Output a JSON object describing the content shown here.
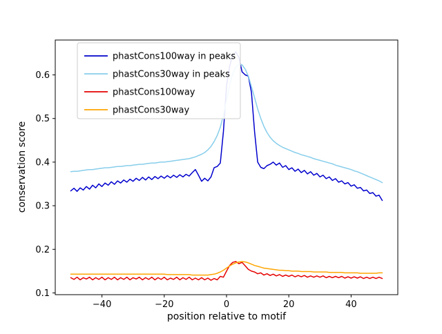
{
  "figure": {
    "background": "#ffffff"
  },
  "chart_data": {
    "type": "line",
    "title": "",
    "xlabel": "position relative to motif",
    "ylabel": "conservation score",
    "xlim": [
      -55,
      55
    ],
    "ylim": [
      0.096,
      0.68
    ],
    "grid": false,
    "legend": {
      "position": "upper left",
      "border_color": "#cccccc"
    },
    "xticks": [
      {
        "value": -40,
        "label": "−40"
      },
      {
        "value": -20,
        "label": "−20"
      },
      {
        "value": 0,
        "label": "0"
      },
      {
        "value": 20,
        "label": "20"
      },
      {
        "value": 40,
        "label": "40"
      }
    ],
    "yticks": [
      {
        "value": 0.1,
        "label": "0.1"
      },
      {
        "value": 0.2,
        "label": "0.2"
      },
      {
        "value": 0.3,
        "label": "0.3"
      },
      {
        "value": 0.4,
        "label": "0.4"
      },
      {
        "value": 0.5,
        "label": "0.5"
      },
      {
        "value": 0.6,
        "label": "0.6"
      }
    ],
    "x": [
      -50,
      -49,
      -48,
      -47,
      -46,
      -45,
      -44,
      -43,
      -42,
      -41,
      -40,
      -39,
      -38,
      -37,
      -36,
      -35,
      -34,
      -33,
      -32,
      -31,
      -30,
      -29,
      -28,
      -27,
      -26,
      -25,
      -24,
      -23,
      -22,
      -21,
      -20,
      -19,
      -18,
      -17,
      -16,
      -15,
      -14,
      -13,
      -12,
      -11,
      -10,
      -9,
      -8,
      -7,
      -6,
      -5,
      -4,
      -3,
      -2,
      -1,
      0,
      1,
      2,
      3,
      4,
      5,
      6,
      7,
      8,
      9,
      10,
      11,
      12,
      13,
      14,
      15,
      16,
      17,
      18,
      19,
      20,
      21,
      22,
      23,
      24,
      25,
      26,
      27,
      28,
      29,
      30,
      31,
      32,
      33,
      34,
      35,
      36,
      37,
      38,
      39,
      40,
      41,
      42,
      43,
      44,
      45,
      46,
      47,
      48,
      49,
      50
    ],
    "series": [
      {
        "id": "phastcons100way-in-peaks",
        "name": "phastCons100way in peaks",
        "color": "#0000cd",
        "values": [
          0.334,
          0.34,
          0.333,
          0.341,
          0.336,
          0.344,
          0.338,
          0.347,
          0.341,
          0.35,
          0.344,
          0.352,
          0.347,
          0.355,
          0.349,
          0.357,
          0.352,
          0.359,
          0.354,
          0.361,
          0.356,
          0.363,
          0.358,
          0.365,
          0.359,
          0.366,
          0.36,
          0.367,
          0.362,
          0.368,
          0.363,
          0.369,
          0.364,
          0.37,
          0.365,
          0.371,
          0.366,
          0.372,
          0.368,
          0.376,
          0.383,
          0.37,
          0.356,
          0.363,
          0.357,
          0.366,
          0.387,
          0.39,
          0.398,
          0.47,
          0.575,
          0.62,
          0.645,
          0.653,
          0.64,
          0.607,
          0.6,
          0.597,
          0.56,
          0.47,
          0.4,
          0.388,
          0.385,
          0.392,
          0.395,
          0.4,
          0.393,
          0.398,
          0.388,
          0.392,
          0.383,
          0.387,
          0.379,
          0.384,
          0.376,
          0.381,
          0.373,
          0.378,
          0.37,
          0.374,
          0.366,
          0.37,
          0.362,
          0.366,
          0.358,
          0.362,
          0.354,
          0.357,
          0.35,
          0.353,
          0.345,
          0.348,
          0.34,
          0.342,
          0.334,
          0.336,
          0.328,
          0.33,
          0.322,
          0.324,
          0.312
        ]
      },
      {
        "id": "phastcons30way-in-peaks",
        "name": "phastCons30way in peaks",
        "color": "#87ceeb",
        "values": [
          0.378,
          0.379,
          0.379,
          0.38,
          0.381,
          0.382,
          0.383,
          0.383,
          0.384,
          0.385,
          0.386,
          0.387,
          0.387,
          0.388,
          0.389,
          0.39,
          0.39,
          0.391,
          0.392,
          0.392,
          0.393,
          0.394,
          0.395,
          0.395,
          0.396,
          0.397,
          0.398,
          0.398,
          0.399,
          0.4,
          0.4,
          0.401,
          0.402,
          0.403,
          0.404,
          0.405,
          0.406,
          0.407,
          0.408,
          0.41,
          0.412,
          0.415,
          0.418,
          0.422,
          0.428,
          0.436,
          0.447,
          0.461,
          0.48,
          0.508,
          0.543,
          0.577,
          0.603,
          0.618,
          0.625,
          0.623,
          0.613,
          0.597,
          0.573,
          0.548,
          0.522,
          0.5,
          0.482,
          0.468,
          0.457,
          0.449,
          0.443,
          0.438,
          0.434,
          0.431,
          0.428,
          0.425,
          0.422,
          0.42,
          0.417,
          0.415,
          0.413,
          0.411,
          0.408,
          0.406,
          0.404,
          0.402,
          0.4,
          0.398,
          0.396,
          0.393,
          0.391,
          0.389,
          0.387,
          0.385,
          0.383,
          0.38,
          0.378,
          0.375,
          0.372,
          0.369,
          0.366,
          0.363,
          0.36,
          0.357,
          0.353
        ]
      },
      {
        "id": "phastcons100way",
        "name": "phastCons100way",
        "color": "#e50000",
        "values": [
          0.135,
          0.131,
          0.136,
          0.13,
          0.135,
          0.132,
          0.136,
          0.13,
          0.135,
          0.131,
          0.136,
          0.13,
          0.135,
          0.131,
          0.136,
          0.13,
          0.135,
          0.131,
          0.136,
          0.13,
          0.135,
          0.132,
          0.136,
          0.13,
          0.135,
          0.131,
          0.136,
          0.13,
          0.135,
          0.131,
          0.136,
          0.13,
          0.134,
          0.131,
          0.136,
          0.13,
          0.135,
          0.131,
          0.136,
          0.13,
          0.134,
          0.13,
          0.135,
          0.13,
          0.134,
          0.129,
          0.133,
          0.13,
          0.138,
          0.136,
          0.15,
          0.163,
          0.17,
          0.172,
          0.167,
          0.17,
          0.162,
          0.154,
          0.15,
          0.148,
          0.144,
          0.146,
          0.141,
          0.144,
          0.14,
          0.143,
          0.139,
          0.142,
          0.138,
          0.141,
          0.138,
          0.141,
          0.137,
          0.14,
          0.137,
          0.14,
          0.136,
          0.139,
          0.136,
          0.139,
          0.136,
          0.139,
          0.135,
          0.138,
          0.135,
          0.138,
          0.135,
          0.138,
          0.134,
          0.137,
          0.134,
          0.137,
          0.134,
          0.137,
          0.133,
          0.136,
          0.133,
          0.136,
          0.133,
          0.136,
          0.133
        ]
      },
      {
        "id": "phastcons30way",
        "name": "phastCons30way",
        "color": "#ffa500",
        "values": [
          0.143,
          0.143,
          0.143,
          0.143,
          0.143,
          0.143,
          0.143,
          0.143,
          0.143,
          0.143,
          0.143,
          0.143,
          0.143,
          0.143,
          0.143,
          0.143,
          0.143,
          0.143,
          0.143,
          0.143,
          0.143,
          0.143,
          0.143,
          0.143,
          0.143,
          0.143,
          0.143,
          0.143,
          0.143,
          0.143,
          0.143,
          0.142,
          0.142,
          0.142,
          0.142,
          0.142,
          0.142,
          0.142,
          0.142,
          0.141,
          0.141,
          0.141,
          0.141,
          0.141,
          0.141,
          0.142,
          0.143,
          0.145,
          0.148,
          0.152,
          0.157,
          0.162,
          0.166,
          0.169,
          0.171,
          0.172,
          0.171,
          0.169,
          0.166,
          0.163,
          0.161,
          0.159,
          0.157,
          0.156,
          0.155,
          0.154,
          0.153,
          0.152,
          0.152,
          0.151,
          0.151,
          0.15,
          0.15,
          0.15,
          0.149,
          0.149,
          0.149,
          0.149,
          0.148,
          0.148,
          0.148,
          0.148,
          0.148,
          0.147,
          0.147,
          0.147,
          0.147,
          0.147,
          0.146,
          0.146,
          0.146,
          0.146,
          0.146,
          0.145,
          0.145,
          0.145,
          0.145,
          0.145,
          0.145,
          0.146,
          0.146
        ]
      }
    ]
  }
}
